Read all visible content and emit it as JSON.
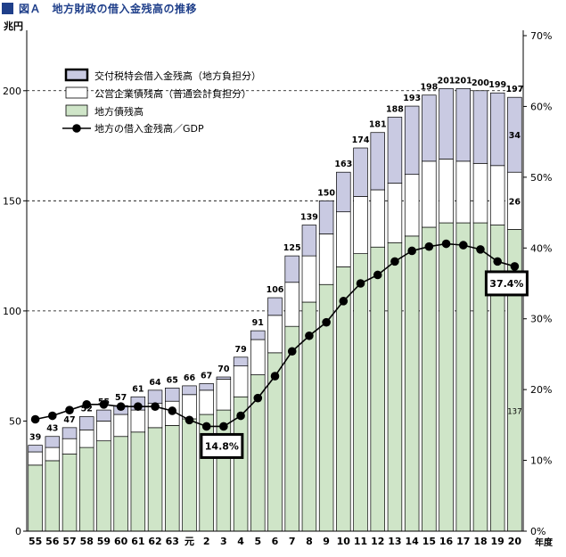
{
  "figure_title": "図Ａ　地方財政の借入金残高の推移",
  "chart_data": {
    "type": "bar",
    "stacked": true,
    "categories": [
      "55",
      "56",
      "57",
      "58",
      "59",
      "60",
      "61",
      "62",
      "63",
      "元",
      "2",
      "3",
      "4",
      "5",
      "6",
      "7",
      "8",
      "9",
      "10",
      "11",
      "12",
      "13",
      "14",
      "15",
      "16",
      "17",
      "18",
      "19",
      "20"
    ],
    "series": [
      {
        "name": "地方債残高",
        "color": "#cfe5c8",
        "values": [
          30,
          32,
          35,
          38,
          41,
          43,
          45,
          47,
          48,
          51,
          53,
          55,
          61,
          71,
          81,
          93,
          104,
          112,
          120,
          126,
          129,
          131,
          134,
          138,
          140,
          140,
          140,
          139,
          137
        ]
      },
      {
        "name": "公営企業債残高（普通会計負担分）",
        "color": "#ffffff",
        "values": [
          6,
          6,
          7,
          8,
          9,
          10,
          10,
          11,
          11,
          11,
          11,
          14,
          14,
          16,
          17,
          20,
          21,
          23,
          25,
          26,
          26,
          27,
          28,
          30,
          29,
          28,
          27,
          27,
          26
        ]
      },
      {
        "name": "交付税特会借入金残高（地方負担分）",
        "color": "#c9cae2",
        "values": [
          3,
          5,
          5,
          6,
          5,
          4,
          6,
          6,
          6,
          4,
          3,
          1,
          4,
          4,
          8,
          12,
          14,
          15,
          18,
          22,
          26,
          30,
          31,
          30,
          32,
          33,
          33,
          33,
          34
        ]
      }
    ],
    "totals": [
      39,
      43,
      47,
      52,
      55,
      57,
      61,
      64,
      65,
      66,
      67,
      70,
      79,
      91,
      106,
      125,
      139,
      150,
      163,
      174,
      181,
      188,
      193,
      198,
      201,
      201,
      200,
      199,
      197
    ],
    "line": {
      "name": "地方の借入金残高／GDP",
      "values": [
        15.8,
        16.3,
        17.1,
        17.9,
        17.9,
        17.6,
        17.6,
        17.6,
        17.0,
        15.7,
        14.8,
        14.8,
        16.3,
        18.8,
        21.9,
        25.4,
        27.6,
        29.5,
        32.5,
        35.0,
        36.2,
        38.1,
        39.6,
        40.2,
        40.6,
        40.4,
        39.8,
        38.1,
        37.4
      ]
    },
    "labels_top": [
      "39",
      "43",
      "47",
      "52",
      "55",
      "57",
      "61",
      "64",
      "65",
      "66",
      "67",
      "70",
      "79",
      "91",
      "106",
      "125",
      "139",
      "150",
      "163",
      "174",
      "181",
      "188",
      "193",
      "198",
      "201",
      "201",
      "200",
      "199",
      "197"
    ],
    "inner_labels_last": {
      "top_segment": "34",
      "middle_segment": "26",
      "bottom_segment": "137"
    },
    "callouts": [
      {
        "category": "3",
        "text": "14.8%"
      },
      {
        "category": "20",
        "text": "37.4%"
      }
    ],
    "left_axis": {
      "unit": "兆円",
      "ticks": [
        0,
        50,
        100,
        150,
        200
      ],
      "ylim": [
        0,
        225
      ]
    },
    "right_axis": {
      "unit": "%",
      "ticks": [
        "0%",
        "10%",
        "20%",
        "30%",
        "40%",
        "50%",
        "60%",
        "70%"
      ],
      "ylim": [
        0,
        70
      ]
    },
    "x_unit": "年度",
    "grid": "dashed at 100, 150, 200",
    "legend_position": "top-left"
  }
}
